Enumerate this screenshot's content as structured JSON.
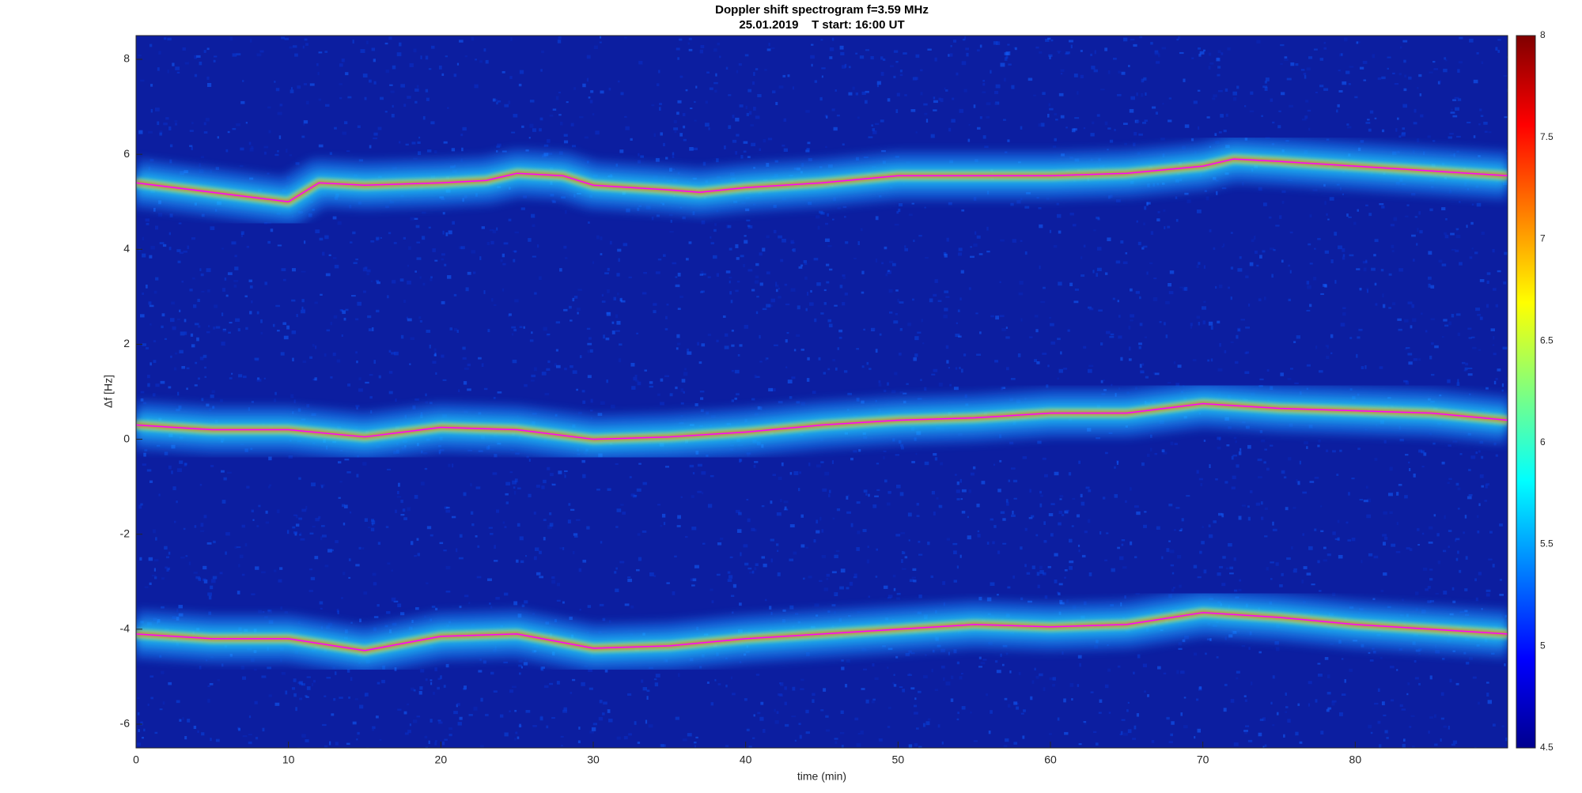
{
  "chart_data": {
    "type": "spectrogram",
    "title": "Doppler shift spectrogram f=3.59 MHz",
    "subtitle": "25.01.2019    T start: 16:00 UT",
    "x_label": "time (min)",
    "y_label": "Δf [Hz]",
    "xlim": [
      0,
      90
    ],
    "ylim": [
      -6.5,
      8.5
    ],
    "xticks": [
      0,
      10,
      20,
      30,
      40,
      50,
      60,
      70,
      80
    ],
    "yticks": [
      -6,
      -4,
      -2,
      0,
      2,
      4,
      6,
      8
    ],
    "clim": [
      4.5,
      8
    ],
    "cticks": [
      4.5,
      5,
      5.5,
      6,
      6.5,
      7,
      7.5,
      8
    ],
    "series": [
      {
        "color": "#ff00ff",
        "x": [
          0,
          5,
          10,
          12,
          15,
          20,
          23,
          25,
          28,
          30,
          35,
          37,
          40,
          45,
          50,
          55,
          60,
          65,
          70,
          72,
          75,
          80,
          85,
          90
        ],
        "values": [
          5.4,
          5.2,
          5.0,
          5.4,
          5.35,
          5.4,
          5.45,
          5.6,
          5.55,
          5.35,
          5.25,
          5.2,
          5.3,
          5.4,
          5.55,
          5.55,
          5.55,
          5.6,
          5.75,
          5.9,
          5.85,
          5.75,
          5.65,
          5.55
        ]
      },
      {
        "color": "#ff00ff",
        "x": [
          0,
          5,
          10,
          15,
          20,
          25,
          30,
          35,
          40,
          45,
          50,
          55,
          60,
          65,
          70,
          75,
          80,
          85,
          90
        ],
        "values": [
          0.3,
          0.2,
          0.2,
          0.05,
          0.25,
          0.2,
          0.0,
          0.05,
          0.15,
          0.3,
          0.4,
          0.45,
          0.55,
          0.55,
          0.75,
          0.65,
          0.6,
          0.55,
          0.4
        ]
      },
      {
        "color": "#ff00ff",
        "x": [
          0,
          5,
          10,
          15,
          20,
          25,
          30,
          35,
          40,
          45,
          50,
          55,
          60,
          65,
          70,
          75,
          80,
          85,
          90
        ],
        "values": [
          -4.1,
          -4.2,
          -4.2,
          -4.45,
          -4.15,
          -4.1,
          -4.4,
          -4.35,
          -4.2,
          -4.1,
          -4.0,
          -3.9,
          -3.95,
          -3.9,
          -3.65,
          -3.75,
          -3.9,
          -4.0,
          -4.1
        ]
      }
    ]
  }
}
